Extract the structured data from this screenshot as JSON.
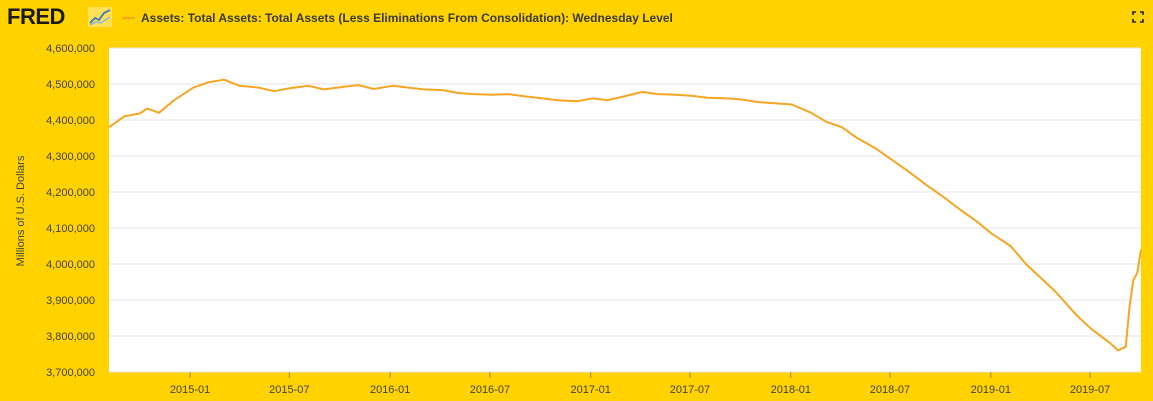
{
  "header": {
    "logo_text": "FRED",
    "logo_icon": "line-graph-icon",
    "expand_icon": "fullscreen-icon"
  },
  "colors": {
    "background": "#FFD200",
    "plot_background": "#FFFFFF",
    "series": "#F5A623",
    "grid": "#E6E6E6"
  },
  "chart_data": {
    "type": "line",
    "title": "Assets: Total Assets: Total Assets (Less Eliminations From Consolidation): Wednesday Level",
    "xlabel": "",
    "ylabel": "Millions of U.S. Dollars",
    "ylim": [
      3700000,
      4600000
    ],
    "yticks": [
      3700000,
      3800000,
      3900000,
      4000000,
      4100000,
      4200000,
      4300000,
      4400000,
      4500000,
      4600000
    ],
    "ytick_labels": [
      "3,700,000",
      "3,800,000",
      "3,900,000",
      "4,000,000",
      "4,100,000",
      "4,200,000",
      "4,300,000",
      "4,400,000",
      "4,500,000",
      "4,600,000"
    ],
    "xlim": [
      "2014-08-06",
      "2019-10-02"
    ],
    "xticks": [
      "2015-01-01",
      "2015-07-01",
      "2016-01-01",
      "2016-07-01",
      "2017-01-01",
      "2017-07-01",
      "2018-01-01",
      "2018-07-01",
      "2019-01-01",
      "2019-07-01"
    ],
    "xtick_labels": [
      "2015-01",
      "2015-07",
      "2016-01",
      "2016-07",
      "2017-01",
      "2017-07",
      "2018-01",
      "2018-07",
      "2019-01",
      "2019-07"
    ],
    "grid": true,
    "legend": "top-left",
    "series": [
      {
        "name": "Assets: Total Assets: Total Assets (Less Eliminations From Consolidation): Wednesday Level",
        "points": [
          [
            "2014-08-06",
            4380000
          ],
          [
            "2014-09-03",
            4410000
          ],
          [
            "2014-10-01",
            4418000
          ],
          [
            "2014-10-15",
            4432000
          ],
          [
            "2014-11-05",
            4420000
          ],
          [
            "2014-12-03",
            4455000
          ],
          [
            "2015-01-07",
            4490000
          ],
          [
            "2015-02-04",
            4505000
          ],
          [
            "2015-03-04",
            4512000
          ],
          [
            "2015-04-01",
            4495000
          ],
          [
            "2015-05-06",
            4490000
          ],
          [
            "2015-06-03",
            4480000
          ],
          [
            "2015-07-01",
            4488000
          ],
          [
            "2015-08-05",
            4495000
          ],
          [
            "2015-09-02",
            4485000
          ],
          [
            "2015-10-07",
            4492000
          ],
          [
            "2015-11-04",
            4497000
          ],
          [
            "2015-12-02",
            4486000
          ],
          [
            "2016-01-06",
            4495000
          ],
          [
            "2016-02-03",
            4490000
          ],
          [
            "2016-03-02",
            4485000
          ],
          [
            "2016-04-06",
            4483000
          ],
          [
            "2016-05-04",
            4475000
          ],
          [
            "2016-06-01",
            4472000
          ],
          [
            "2016-07-06",
            4470000
          ],
          [
            "2016-08-03",
            4472000
          ],
          [
            "2016-09-07",
            4465000
          ],
          [
            "2016-10-05",
            4460000
          ],
          [
            "2016-11-02",
            4455000
          ],
          [
            "2016-12-07",
            4452000
          ],
          [
            "2017-01-04",
            4460000
          ],
          [
            "2017-02-01",
            4455000
          ],
          [
            "2017-03-01",
            4465000
          ],
          [
            "2017-04-05",
            4478000
          ],
          [
            "2017-05-03",
            4472000
          ],
          [
            "2017-06-07",
            4470000
          ],
          [
            "2017-07-05",
            4467000
          ],
          [
            "2017-08-02",
            4462000
          ],
          [
            "2017-09-06",
            4460000
          ],
          [
            "2017-10-04",
            4457000
          ],
          [
            "2017-11-01",
            4450000
          ],
          [
            "2017-12-06",
            4446000
          ],
          [
            "2018-01-03",
            4443000
          ],
          [
            "2018-02-07",
            4420000
          ],
          [
            "2018-03-07",
            4395000
          ],
          [
            "2018-04-04",
            4380000
          ],
          [
            "2018-05-02",
            4350000
          ],
          [
            "2018-06-06",
            4320000
          ],
          [
            "2018-07-04",
            4290000
          ],
          [
            "2018-08-01",
            4260000
          ],
          [
            "2018-09-05",
            4220000
          ],
          [
            "2018-10-03",
            4190000
          ],
          [
            "2018-11-07",
            4150000
          ],
          [
            "2018-12-05",
            4120000
          ],
          [
            "2019-01-02",
            4085000
          ],
          [
            "2019-02-06",
            4050000
          ],
          [
            "2019-03-06",
            4000000
          ],
          [
            "2019-04-03",
            3960000
          ],
          [
            "2019-05-01",
            3920000
          ],
          [
            "2019-06-05",
            3860000
          ],
          [
            "2019-07-03",
            3820000
          ],
          [
            "2019-08-07",
            3780000
          ],
          [
            "2019-08-21",
            3760000
          ],
          [
            "2019-09-04",
            3770000
          ],
          [
            "2019-09-11",
            3880000
          ],
          [
            "2019-09-18",
            3955000
          ],
          [
            "2019-09-25",
            3975000
          ],
          [
            "2019-10-02",
            4040000
          ]
        ]
      }
    ]
  }
}
